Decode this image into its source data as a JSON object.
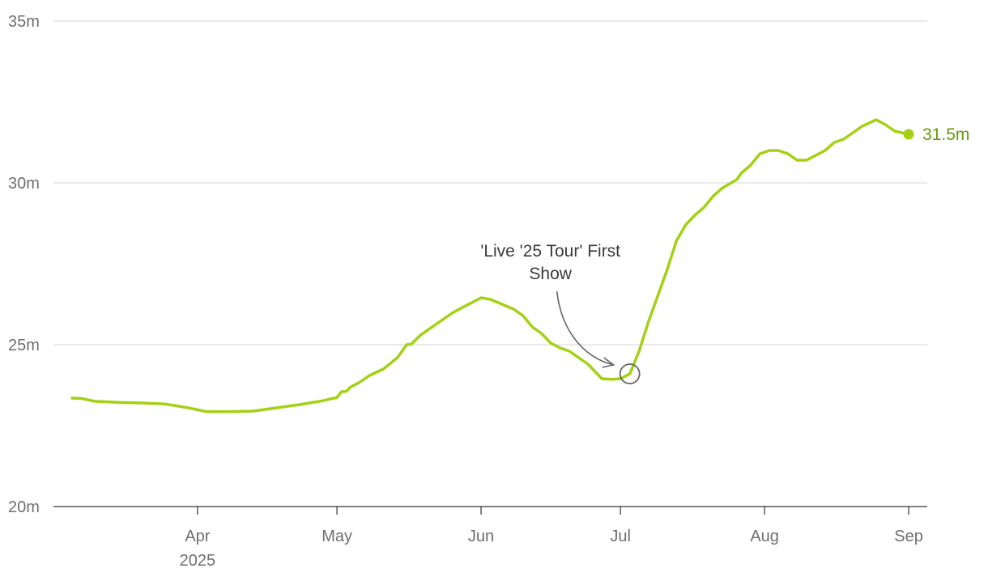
{
  "colors": {
    "line": "#a4d113",
    "end_label": "#6b9a08",
    "annotation": "#666666"
  },
  "chart_data": {
    "type": "line",
    "title": "",
    "xlabel": "",
    "ylabel": "",
    "x_range": [
      "2025-03-01",
      "2025-09-05"
    ],
    "ylim": [
      20,
      35
    ],
    "y_ticks": [
      {
        "value": 20,
        "label": "20m"
      },
      {
        "value": 25,
        "label": "25m"
      },
      {
        "value": 30,
        "label": "30m"
      },
      {
        "value": 35,
        "label": "35m"
      }
    ],
    "x_ticks": [
      {
        "date": "2025-04-01",
        "label": "Apr",
        "sublabel": "2025"
      },
      {
        "date": "2025-05-01",
        "label": "May",
        "sublabel": ""
      },
      {
        "date": "2025-06-01",
        "label": "Jun",
        "sublabel": ""
      },
      {
        "date": "2025-07-01",
        "label": "Jul",
        "sublabel": ""
      },
      {
        "date": "2025-08-01",
        "label": "Aug",
        "sublabel": ""
      },
      {
        "date": "2025-09-01",
        "label": "Sep",
        "sublabel": ""
      }
    ],
    "grid": true,
    "series": [
      {
        "name": "",
        "points": [
          [
            "2025-03-05",
            23.35
          ],
          [
            "2025-03-07",
            23.34
          ],
          [
            "2025-03-10",
            23.25
          ],
          [
            "2025-03-15",
            23.22
          ],
          [
            "2025-03-20",
            23.2
          ],
          [
            "2025-03-25",
            23.17
          ],
          [
            "2025-03-30",
            23.05
          ],
          [
            "2025-04-03",
            22.93
          ],
          [
            "2025-04-08",
            22.93
          ],
          [
            "2025-04-13",
            22.95
          ],
          [
            "2025-04-18",
            23.05
          ],
          [
            "2025-04-23",
            23.15
          ],
          [
            "2025-04-28",
            23.27
          ],
          [
            "2025-05-01",
            23.37
          ],
          [
            "2025-05-02",
            23.55
          ],
          [
            "2025-05-03",
            23.56
          ],
          [
            "2025-05-04",
            23.7
          ],
          [
            "2025-05-06",
            23.85
          ],
          [
            "2025-05-08",
            24.05
          ],
          [
            "2025-05-11",
            24.25
          ],
          [
            "2025-05-14",
            24.6
          ],
          [
            "2025-05-15",
            24.8
          ],
          [
            "2025-05-16",
            25.0
          ],
          [
            "2025-05-17",
            25.02
          ],
          [
            "2025-05-19",
            25.3
          ],
          [
            "2025-05-22",
            25.6
          ],
          [
            "2025-05-26",
            26.0
          ],
          [
            "2025-05-30",
            26.3
          ],
          [
            "2025-06-01",
            26.45
          ],
          [
            "2025-06-03",
            26.4
          ],
          [
            "2025-06-05",
            26.28
          ],
          [
            "2025-06-08",
            26.1
          ],
          [
            "2025-06-10",
            25.9
          ],
          [
            "2025-06-12",
            25.55
          ],
          [
            "2025-06-14",
            25.35
          ],
          [
            "2025-06-16",
            25.05
          ],
          [
            "2025-06-18",
            24.9
          ],
          [
            "2025-06-20",
            24.8
          ],
          [
            "2025-06-22",
            24.6
          ],
          [
            "2025-06-24",
            24.4
          ],
          [
            "2025-06-26",
            24.1
          ],
          [
            "2025-06-27",
            23.95
          ],
          [
            "2025-06-29",
            23.93
          ],
          [
            "2025-07-01",
            23.95
          ],
          [
            "2025-07-03",
            24.1
          ],
          [
            "2025-07-05",
            24.8
          ],
          [
            "2025-07-07",
            25.7
          ],
          [
            "2025-07-09",
            26.5
          ],
          [
            "2025-07-11",
            27.3
          ],
          [
            "2025-07-13",
            28.2
          ],
          [
            "2025-07-15",
            28.7
          ],
          [
            "2025-07-17",
            29.0
          ],
          [
            "2025-07-19",
            29.25
          ],
          [
            "2025-07-21",
            29.6
          ],
          [
            "2025-07-23",
            29.85
          ],
          [
            "2025-07-26",
            30.1
          ],
          [
            "2025-07-27",
            30.3
          ],
          [
            "2025-07-29",
            30.55
          ],
          [
            "2025-07-31",
            30.9
          ],
          [
            "2025-08-02",
            31.0
          ],
          [
            "2025-08-04",
            31.0
          ],
          [
            "2025-08-06",
            30.9
          ],
          [
            "2025-08-08",
            30.7
          ],
          [
            "2025-08-10",
            30.7
          ],
          [
            "2025-08-12",
            30.85
          ],
          [
            "2025-08-14",
            31.0
          ],
          [
            "2025-08-16",
            31.25
          ],
          [
            "2025-08-18",
            31.35
          ],
          [
            "2025-08-20",
            31.55
          ],
          [
            "2025-08-22",
            31.75
          ],
          [
            "2025-08-25",
            31.95
          ],
          [
            "2025-08-27",
            31.8
          ],
          [
            "2025-08-29",
            31.6
          ],
          [
            "2025-09-01",
            31.5
          ]
        ]
      }
    ],
    "end_label": {
      "date": "2025-09-01",
      "value": 31.5,
      "text": "31.5m"
    },
    "annotations": [
      {
        "text_lines": [
          "'Live '25 Tour' First",
          "Show"
        ],
        "date": "2025-07-03",
        "value": 24.1
      }
    ]
  }
}
